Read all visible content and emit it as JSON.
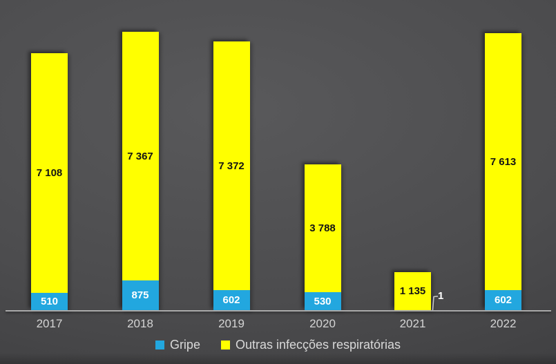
{
  "chart_data": {
    "type": "bar",
    "stacked": true,
    "title": "",
    "xlabel": "",
    "ylabel": "",
    "categories": [
      "2017",
      "2018",
      "2019",
      "2020",
      "2021",
      "2022"
    ],
    "series": [
      {
        "name": "Gripe",
        "color": "#22A7DF",
        "label_color": "#FFFFFF",
        "values": [
          510,
          875,
          602,
          530,
          1,
          602
        ],
        "labels": [
          "510",
          "875",
          "602",
          "530",
          "1",
          "602"
        ]
      },
      {
        "name": "Outras infecções respiratórias",
        "color": "#FFFF00",
        "label_color": "#141414",
        "values": [
          7108,
          7367,
          7372,
          3788,
          1135,
          7613
        ],
        "labels": [
          "7 108",
          "7 367",
          "7 372",
          "3 788",
          "1 135",
          "7 613"
        ]
      }
    ],
    "legend_position": "bottom",
    "grid": false,
    "y_axis_visible": false,
    "ylim": [
      0,
      9200
    ],
    "axis_color": "#A9A9A9",
    "tick_label_color": "#D4D4D4",
    "legend_text_color": "#D9D9D9",
    "background_from": "#59595B",
    "background_to": "#353537",
    "callout": {
      "series": "Gripe",
      "category": "2021",
      "text": "1",
      "text_color": "#FFFFFF",
      "leader_color": "#C9C9C9"
    }
  }
}
